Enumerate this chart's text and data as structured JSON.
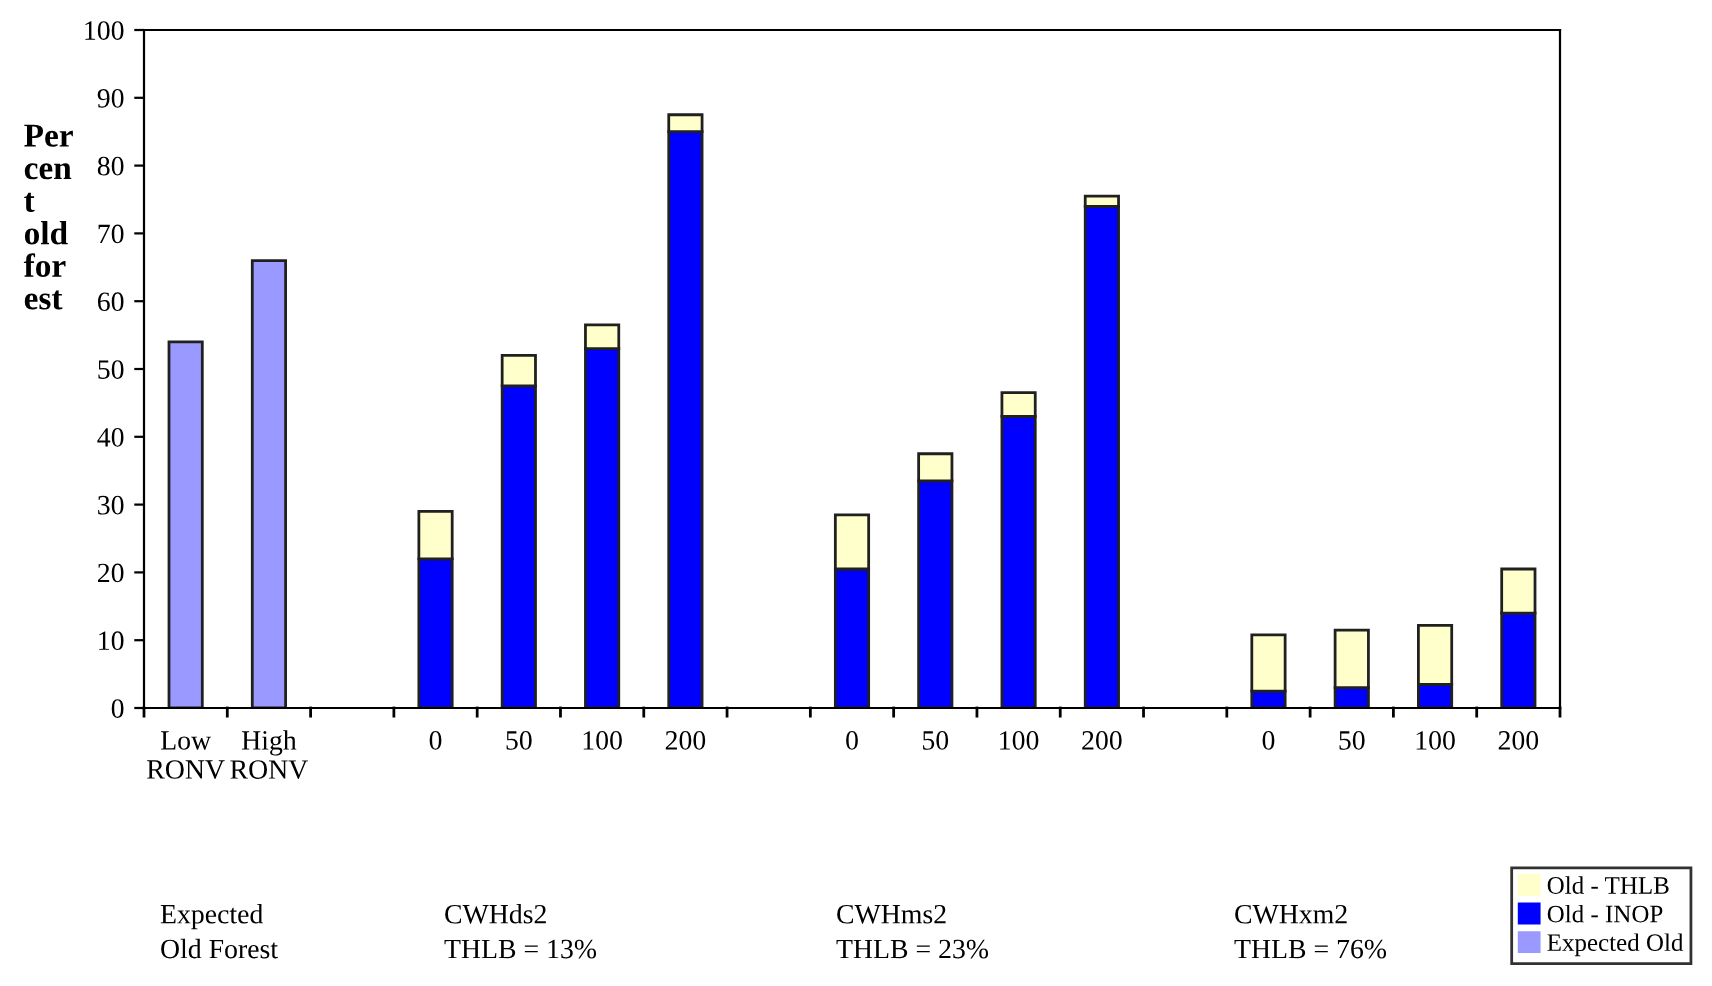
{
  "chart_data": {
    "type": "bar",
    "stacked": true,
    "ylabel": "Per\ncen\nt\nold\nfor\nest",
    "categories": [
      "Low\nRONV",
      "High\nRONV",
      null,
      "0",
      "50",
      "100",
      "200",
      null,
      "0",
      "50",
      "100",
      "200",
      null,
      "0",
      "50",
      "100",
      "200"
    ],
    "series": [
      {
        "name": "Expected Old",
        "color": "#9999ff",
        "values": [
          54,
          66,
          null,
          null,
          null,
          null,
          null,
          null,
          null,
          null,
          null,
          null,
          null,
          null,
          null,
          null,
          null
        ]
      },
      {
        "name": "Old - INOP",
        "color": "#0000ff",
        "values": [
          null,
          null,
          null,
          22,
          47.5,
          53,
          85,
          null,
          20.5,
          33.5,
          43,
          74,
          null,
          2.5,
          3,
          3.5,
          14
        ]
      },
      {
        "name": "Old - THLB",
        "color": "#ffffcc",
        "values": [
          null,
          null,
          null,
          7,
          4.5,
          3.5,
          2.5,
          null,
          8,
          4,
          3.5,
          1.5,
          null,
          8.3,
          8.5,
          8.7,
          6.5
        ]
      }
    ],
    "ylim": [
      0,
      100
    ],
    "yticks": [
      0,
      10,
      20,
      30,
      40,
      50,
      60,
      70,
      80,
      90,
      100
    ],
    "grid": false,
    "legend": "bottom right",
    "annotations": [
      "Expected\nOld Forest",
      "CWHds2\nTHLB = 13%",
      "CWHms2\nTHLB = 23%",
      "CWHxm2\nTHLB = 76%"
    ]
  }
}
